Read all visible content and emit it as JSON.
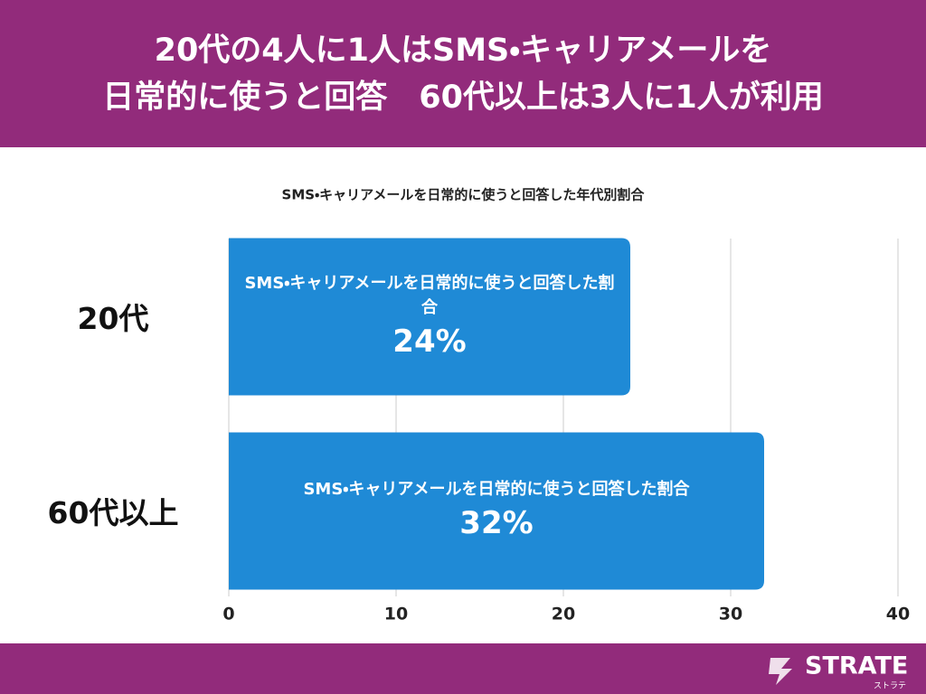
{
  "header": {
    "title": [
      "20代の4人に1人はSMS・キャリアメールを",
      "日常的に使うと回答　60代以上は3人に1人が利用"
    ]
  },
  "chart_data": {
    "type": "hbar",
    "title": "SMS・キャリアメールを日常的に使うと回答した年代別割合",
    "categories": [
      "20代",
      "60代以上"
    ],
    "series": [
      {
        "name": "SMS・キャリアメールを日常的に使うと回答した割合",
        "color": "#1f8ad6",
        "values": [
          24,
          32
        ],
        "value_labels": [
          "24%",
          "32%"
        ]
      }
    ],
    "xlim": [
      0,
      40
    ],
    "xticks": [
      0,
      10,
      20,
      30,
      40
    ],
    "grid": true
  },
  "footer": {
    "logo": "STRATE",
    "logo_kana": "ストラテ"
  }
}
